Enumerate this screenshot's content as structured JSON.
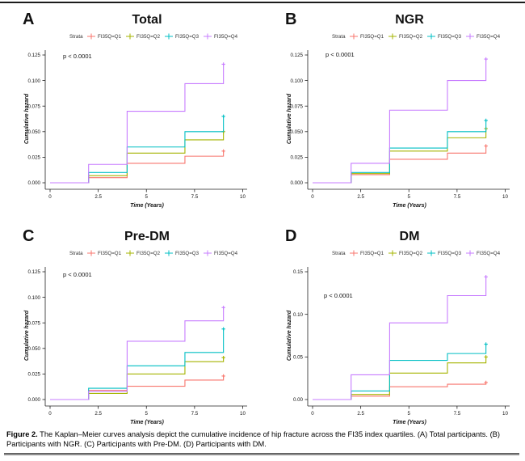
{
  "caption": {
    "label": "Figure 2.",
    "text": "The Kaplan–Meier curves analysis depict the cumulative incidence of hip fracture across the FI35 index quartiles. (A) Total participants. (B) Participants with NGR. (C) Participants with Pre-DM. (D) Participants with DM."
  },
  "chart_data": [
    {
      "type": "line",
      "subtype": "kaplan-meier-cumulative-hazard-step",
      "panel": "A",
      "title": "Total",
      "p_value": "p < 0.0001",
      "legend_title": "Strata",
      "xlabel": "Time (Years)",
      "ylabel": "Cumulative hazard",
      "xlim": [
        0,
        10
      ],
      "ylim": [
        0,
        0.125
      ],
      "x_ticks": [
        "0",
        "2.5",
        "5",
        "7.5",
        "10"
      ],
      "y_ticks": [
        "0.000",
        "0.025",
        "0.050",
        "0.075",
        "0.100",
        "0.125"
      ],
      "x": [
        0,
        2,
        4,
        7,
        9
      ],
      "series": [
        {
          "name": "FI35Q=Q1",
          "color": "#F8766D",
          "values": [
            0,
            0.005,
            0.019,
            0.026,
            0.031
          ]
        },
        {
          "name": "FI35Q=Q2",
          "color": "#A5B400",
          "values": [
            0,
            0.007,
            0.029,
            0.042,
            0.05
          ]
        },
        {
          "name": "FI35Q=Q3",
          "color": "#00BFC4",
          "values": [
            0,
            0.01,
            0.035,
            0.05,
            0.065
          ]
        },
        {
          "name": "FI35Q=Q4",
          "color": "#C77CFF",
          "values": [
            0,
            0.018,
            0.07,
            0.097,
            0.116
          ]
        }
      ]
    },
    {
      "type": "line",
      "subtype": "kaplan-meier-cumulative-hazard-step",
      "panel": "B",
      "title": "NGR",
      "p_value": "p < 0.0001",
      "legend_title": "Strata",
      "xlabel": "Time (Years)",
      "ylabel": "Cumulative hazard",
      "xlim": [
        0,
        10
      ],
      "ylim": [
        0,
        0.125
      ],
      "x_ticks": [
        "0",
        "2.5",
        "5",
        "7.5",
        "10"
      ],
      "y_ticks": [
        "0.000",
        "0.025",
        "0.050",
        "0.075",
        "0.100",
        "0.125"
      ],
      "x": [
        0,
        2,
        4,
        7,
        9
      ],
      "series": [
        {
          "name": "FI35Q=Q1",
          "color": "#F8766D",
          "values": [
            0,
            0.008,
            0.023,
            0.029,
            0.036
          ]
        },
        {
          "name": "FI35Q=Q2",
          "color": "#A5B400",
          "values": [
            0,
            0.009,
            0.031,
            0.044,
            0.053
          ]
        },
        {
          "name": "FI35Q=Q3",
          "color": "#00BFC4",
          "values": [
            0,
            0.01,
            0.034,
            0.05,
            0.061
          ]
        },
        {
          "name": "FI35Q=Q4",
          "color": "#C77CFF",
          "values": [
            0,
            0.019,
            0.071,
            0.1,
            0.121
          ]
        }
      ]
    },
    {
      "type": "line",
      "subtype": "kaplan-meier-cumulative-hazard-step",
      "panel": "C",
      "title": "Pre-DM",
      "p_value": "p < 0.0001",
      "legend_title": "Strata",
      "xlabel": "Time (Years)",
      "ylabel": "Cumulative hazard",
      "xlim": [
        0,
        10
      ],
      "ylim": [
        0,
        0.125
      ],
      "x_ticks": [
        "0",
        "2.5",
        "5",
        "7.5",
        "10"
      ],
      "y_ticks": [
        "0.000",
        "0.025",
        "0.050",
        "0.075",
        "0.100",
        "0.125"
      ],
      "x": [
        0,
        2,
        4,
        7,
        9
      ],
      "series": [
        {
          "name": "FI35Q=Q1",
          "color": "#F8766D",
          "values": [
            0,
            0.009,
            0.013,
            0.019,
            0.023
          ]
        },
        {
          "name": "FI35Q=Q2",
          "color": "#A5B400",
          "values": [
            0,
            0.006,
            0.025,
            0.037,
            0.041
          ]
        },
        {
          "name": "FI35Q=Q3",
          "color": "#00BFC4",
          "values": [
            0,
            0.011,
            0.033,
            0.046,
            0.069
          ]
        },
        {
          "name": "FI35Q=Q4",
          "color": "#C77CFF",
          "values": [
            0,
            0.008,
            0.057,
            0.077,
            0.09
          ]
        }
      ]
    },
    {
      "type": "line",
      "subtype": "kaplan-meier-cumulative-hazard-step",
      "panel": "D",
      "title": "DM",
      "p_value": "p < 0.0001",
      "legend_title": "Strata",
      "xlabel": "Time (Years)",
      "ylabel": "Cumulative hazard",
      "xlim": [
        0,
        10
      ],
      "ylim": [
        0,
        0.15
      ],
      "x_ticks": [
        "0",
        "2.5",
        "5",
        "7.5",
        "10"
      ],
      "y_ticks": [
        "0.00",
        "0.05",
        "0.10",
        "0.15"
      ],
      "x": [
        0,
        2,
        4,
        7,
        9
      ],
      "series": [
        {
          "name": "FI35Q=Q1",
          "color": "#F8766D",
          "values": [
            0,
            0.004,
            0.015,
            0.018,
            0.02
          ]
        },
        {
          "name": "FI35Q=Q2",
          "color": "#A5B400",
          "values": [
            0,
            0.006,
            0.031,
            0.043,
            0.05
          ]
        },
        {
          "name": "FI35Q=Q3",
          "color": "#00BFC4",
          "values": [
            0,
            0.01,
            0.046,
            0.054,
            0.065
          ]
        },
        {
          "name": "FI35Q=Q4",
          "color": "#C77CFF",
          "values": [
            0,
            0.029,
            0.09,
            0.122,
            0.144
          ]
        }
      ]
    }
  ]
}
